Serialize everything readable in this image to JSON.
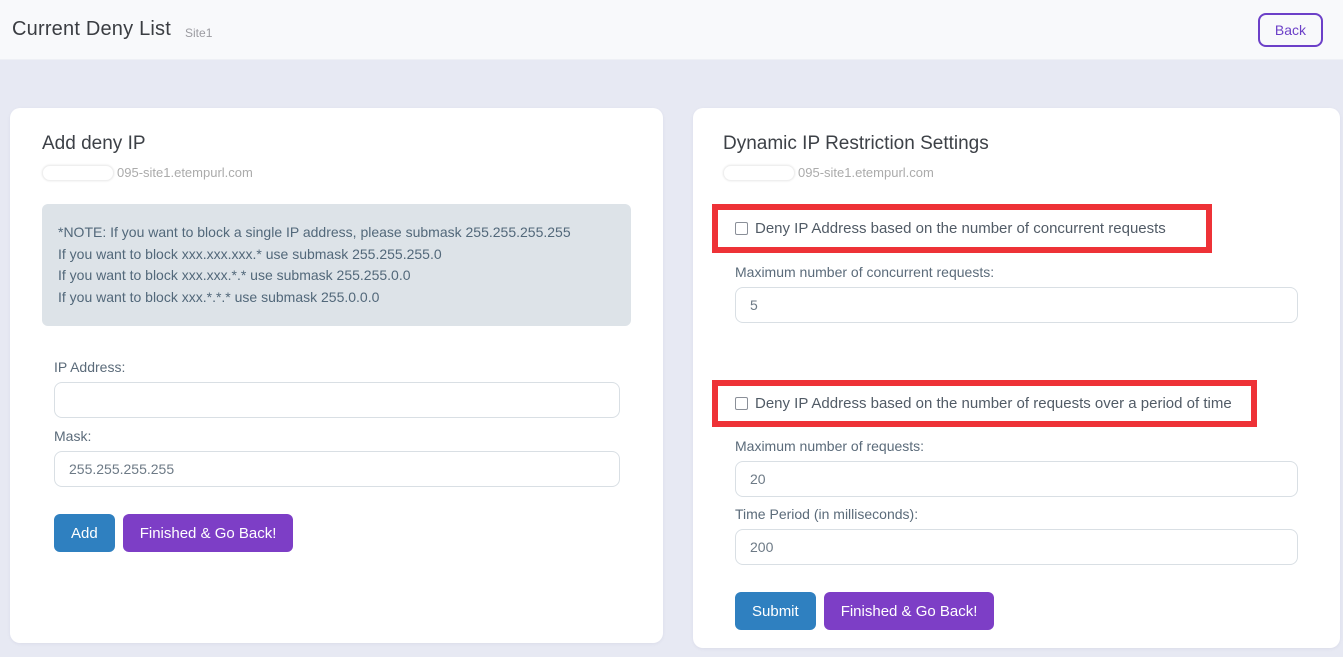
{
  "header": {
    "title": "Current Deny List",
    "subtitle": "Site1",
    "back_label": "Back"
  },
  "add_deny_panel": {
    "title": "Add deny IP",
    "domain": "095-site1.etempurl.com",
    "note_lines": [
      "*NOTE: If you want to block a single IP address, please submask 255.255.255.255",
      "If you want to block xxx.xxx.xxx.* use submask 255.255.255.0",
      "If you want to block xxx.xxx.*.* use submask 255.255.0.0",
      "If you want to block xxx.*.*.* use submask 255.0.0.0"
    ],
    "ip_label": "IP Address:",
    "ip_value": "",
    "mask_label": "Mask:",
    "mask_value": "255.255.255.255",
    "add_button": "Add",
    "finish_button": "Finished & Go Back!"
  },
  "dynamic_panel": {
    "title": "Dynamic IP Restriction Settings",
    "domain": "095-site1.etempurl.com",
    "concurrent_checkbox_label": "Deny IP Address based on the number of concurrent requests",
    "concurrent_max_label": "Maximum number of concurrent requests:",
    "concurrent_max_value": "5",
    "period_checkbox_label": "Deny IP Address based on the number of requests over a period of time",
    "max_requests_label": "Maximum number of requests:",
    "max_requests_value": "20",
    "time_period_label": "Time Period (in milliseconds):",
    "time_period_value": "200",
    "submit_button": "Submit",
    "finish_button": "Finished & Go Back!"
  },
  "colors": {
    "accent_blue": "#2f80c0",
    "accent_purple": "#7d3ec6",
    "back_purple": "#6c40c8",
    "annotation_red": "#ee3237",
    "body_background": "#e7e9f3",
    "note_background": "#dde3e8"
  }
}
